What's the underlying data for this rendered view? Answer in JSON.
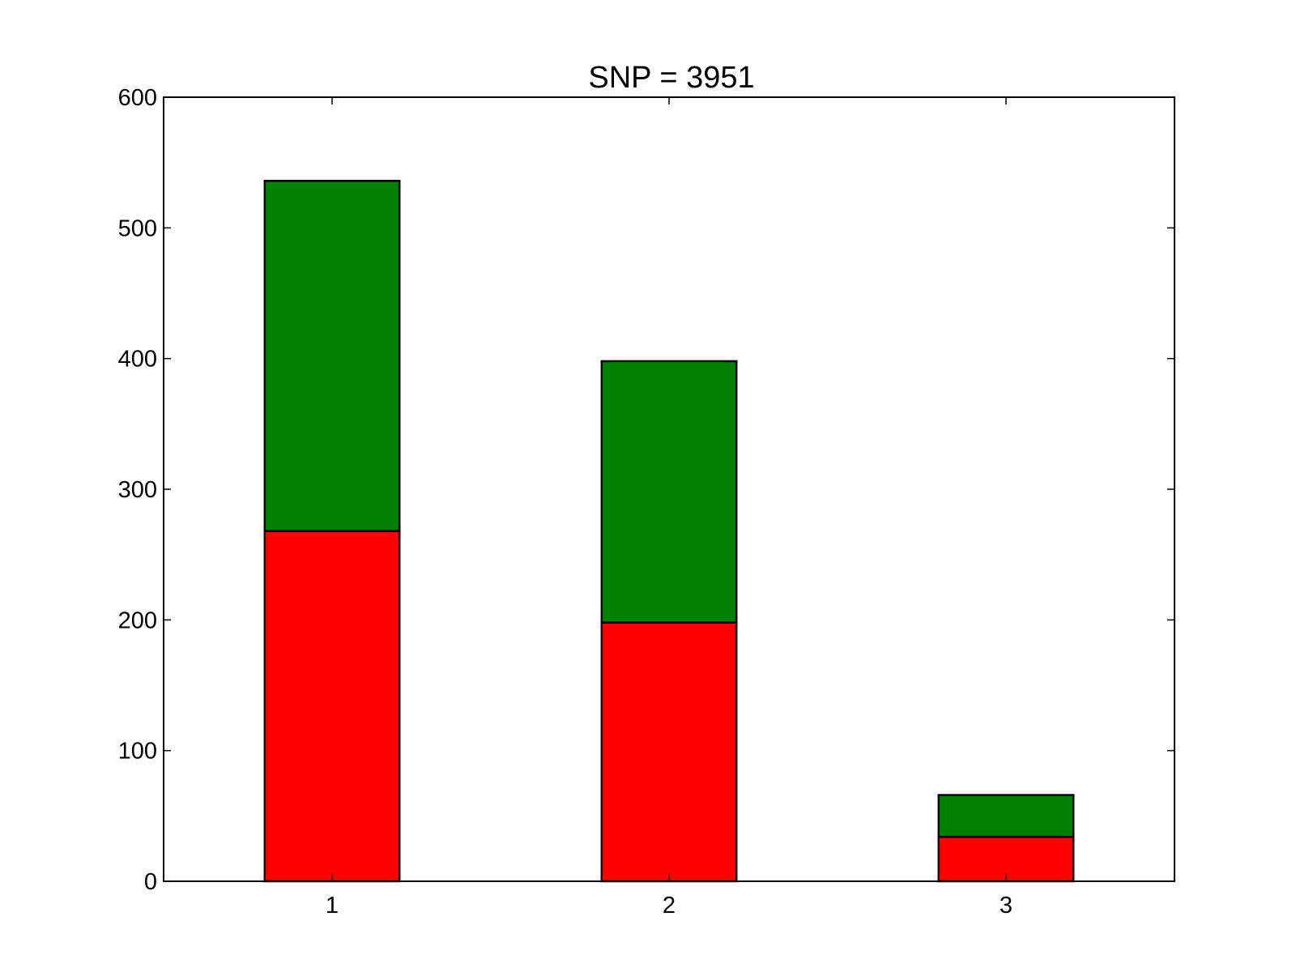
{
  "chart_data": {
    "type": "bar",
    "stacked": true,
    "title": "SNP = 3951",
    "xlabel": "",
    "ylabel": "",
    "categories": [
      "1",
      "2",
      "3"
    ],
    "series": [
      {
        "values": [
          268,
          198,
          34
        ],
        "color": "#ff0000"
      },
      {
        "values": [
          268,
          200,
          32
        ],
        "color": "#008000"
      }
    ],
    "ylim": [
      0,
      600
    ],
    "yticks": [
      "0",
      "100",
      "200",
      "300",
      "400",
      "500",
      "600"
    ],
    "xlim": [
      0.5,
      3.5
    ],
    "grid": false,
    "legend": "none"
  }
}
